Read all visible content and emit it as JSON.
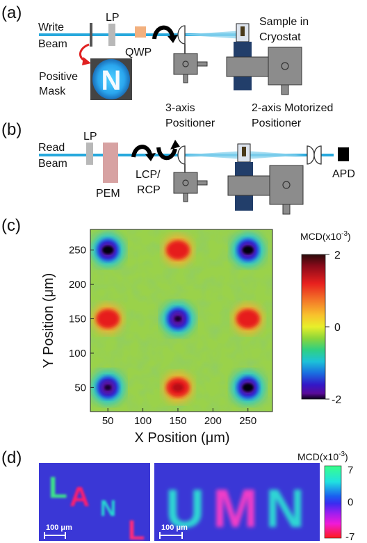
{
  "panel_a": {
    "label": "(a)",
    "write_beam": [
      "Write",
      "Beam"
    ],
    "lp": "LP",
    "qwp": "QWP",
    "positive_mask": [
      "Positive",
      "Mask"
    ],
    "mask_letter": "N",
    "sample": [
      "Sample in",
      "Cryostat"
    ],
    "three_axis": [
      "3-axis",
      "Positioner"
    ],
    "two_axis": [
      "2-axis Motorized",
      "Positioner"
    ]
  },
  "panel_b": {
    "label": "(b)",
    "read_beam": [
      "Read",
      "Beam"
    ],
    "lp": "LP",
    "pem": "PEM",
    "lcp_rcp": [
      "LCP/",
      "RCP"
    ],
    "apd": "APD"
  },
  "panel_c": {
    "label": "(c)",
    "colorbar_title": "MCD(x10",
    "colorbar_exp": "-3",
    "colorbar_close": ")",
    "colorbar_ticks": [
      "2",
      "0",
      "-2"
    ]
  },
  "panel_d": {
    "label": "(d)",
    "colorbar_title": "MCD(x10",
    "colorbar_exp": "-3",
    "colorbar_close": ")",
    "colorbar_ticks": [
      "7",
      "0",
      "-7"
    ],
    "left_letters": [
      "L",
      "A",
      "N",
      "L"
    ],
    "right_letters": [
      "U",
      "M",
      "N"
    ],
    "scalebar_label": "100 μm"
  },
  "chart_data": {
    "type": "heatmap",
    "xlabel": "X Position (μm)",
    "ylabel": "Y Position (μm)",
    "xlim": [
      25,
      285
    ],
    "ylim": [
      15,
      280
    ],
    "x_ticks": [
      50,
      100,
      150,
      200,
      250
    ],
    "y_ticks": [
      50,
      100,
      150,
      200,
      250
    ],
    "z_range": [
      -2,
      2
    ],
    "colorbar_label": "MCD(x10-3)",
    "features": [
      {
        "x": 50,
        "y": 250,
        "value": -2
      },
      {
        "x": 150,
        "y": 250,
        "value": 1.5
      },
      {
        "x": 250,
        "y": 250,
        "value": -2
      },
      {
        "x": 50,
        "y": 150,
        "value": 1.7
      },
      {
        "x": 150,
        "y": 150,
        "value": -1.8
      },
      {
        "x": 250,
        "y": 150,
        "value": 1.7
      },
      {
        "x": 50,
        "y": 50,
        "value": -1.8
      },
      {
        "x": 150,
        "y": 50,
        "value": 1.9
      },
      {
        "x": 250,
        "y": 50,
        "value": -2
      }
    ],
    "colors": {
      "background": "#9ad24a",
      "positive": "#e61e1e",
      "negative": "#2a2bd8"
    }
  }
}
